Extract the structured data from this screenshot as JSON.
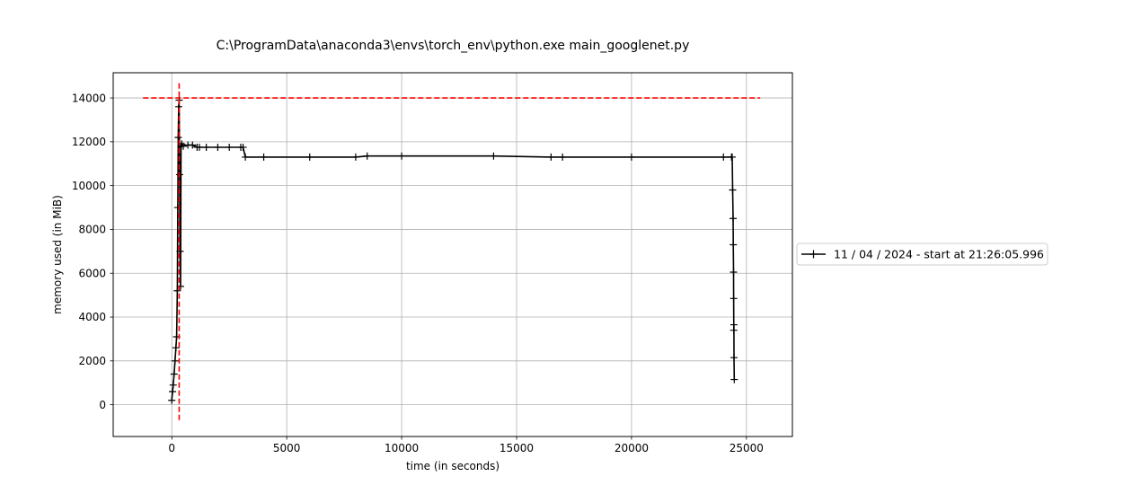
{
  "chart_data": {
    "type": "line",
    "title": "C:\\ProgramData\\anaconda3\\envs\\torch_env\\python.exe main_googlenet.py",
    "xlabel": "time (in seconds)",
    "ylabel": "memory used (in MiB)",
    "xlim": [
      -2550,
      27000
    ],
    "ylim": [
      -1450,
      15150
    ],
    "xticks": [
      0,
      5000,
      10000,
      15000,
      20000,
      25000
    ],
    "yticks": [
      0,
      2000,
      4000,
      6000,
      8000,
      10000,
      12000,
      14000
    ],
    "grid": true,
    "legend": {
      "placement": "right-outside"
    },
    "series": [
      {
        "name": "11 / 04 / 2024 - start at 21:26:05.996",
        "color": "#000000",
        "marker": "plus",
        "x": [
          0,
          30,
          60,
          100,
          140,
          180,
          210,
          240,
          260,
          280,
          300,
          320,
          340,
          360,
          380,
          400,
          430,
          500,
          700,
          900,
          1100,
          1200,
          1500,
          2000,
          2500,
          3000,
          3100,
          3200,
          4000,
          6000,
          8000,
          8500,
          10000,
          14000,
          16500,
          17000,
          20000,
          24000,
          24350,
          24380,
          24400,
          24420,
          24430,
          24440,
          24445,
          24450,
          24455,
          24460,
          24470
        ],
        "y": [
          200,
          600,
          900,
          1400,
          2000,
          2600,
          3100,
          5200,
          9000,
          12200,
          13600,
          13900,
          10500,
          7000,
          5400,
          11800,
          11900,
          11800,
          11850,
          11850,
          11750,
          11750,
          11750,
          11750,
          11750,
          11750,
          11750,
          11300,
          11300,
          11300,
          11300,
          11350,
          11350,
          11350,
          11300,
          11300,
          11300,
          11300,
          11300,
          11300,
          9800,
          8500,
          7300,
          6050,
          4850,
          3400,
          3650,
          2150,
          1150
        ]
      }
    ],
    "reference_lines": [
      {
        "orientation": "horizontal",
        "value": 14000,
        "from": -1250,
        "to": 25600,
        "color": "#ff0000",
        "style": "dashed"
      },
      {
        "orientation": "vertical",
        "value": 320,
        "from": -700,
        "to": 14700,
        "color": "#ff0000",
        "style": "dashed"
      }
    ]
  }
}
